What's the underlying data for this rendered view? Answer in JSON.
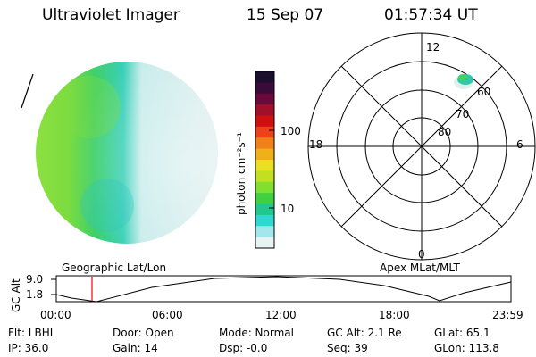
{
  "header": {
    "title": "Ultraviolet Imager",
    "date": "15 Sep 07",
    "time": "01:57:34 UT"
  },
  "colorbar": {
    "unit_label": "photon cm⁻²s⁻¹",
    "tick_labels": [
      "100",
      "10"
    ],
    "colors": [
      "#1a0f2e",
      "#3a0a3a",
      "#6a0a3a",
      "#a0102a",
      "#d01010",
      "#f04018",
      "#f08018",
      "#f0b018",
      "#e8e020",
      "#c0e020",
      "#80e030",
      "#40d040",
      "#20c890",
      "#30d8d0",
      "#a0e8ec",
      "#e8f4f4"
    ]
  },
  "polar_grid": {
    "mlt_labels": {
      "top": "12",
      "left": "18",
      "right": "6",
      "bottom": "0"
    },
    "lat_labels": [
      "60",
      "70",
      "80"
    ]
  },
  "labels": {
    "left_projection": "Geographic Lat/Lon",
    "right_projection": "Apex MLat/MLT"
  },
  "orbit_plot": {
    "y_axis_title": "GC Alt",
    "y_ticks": [
      "9.0",
      "1.8"
    ],
    "x_ticks": [
      "00:00",
      "06:00",
      "12:00",
      "18:00",
      "23:59"
    ],
    "current_marker_color": "#ff0000"
  },
  "status": {
    "flt": "Flt: LBHL",
    "ip": "IP: 36.0",
    "door": "Door: Open",
    "gain": "Gain: 14",
    "mode": "Mode: Normal",
    "dsp": "Dsp:   -0.0",
    "gc_alt": "GC Alt: 2.1 Re",
    "seq": "Seq: 39",
    "glat": "GLat:  65.1",
    "glon": "GLon: 113.8"
  }
}
